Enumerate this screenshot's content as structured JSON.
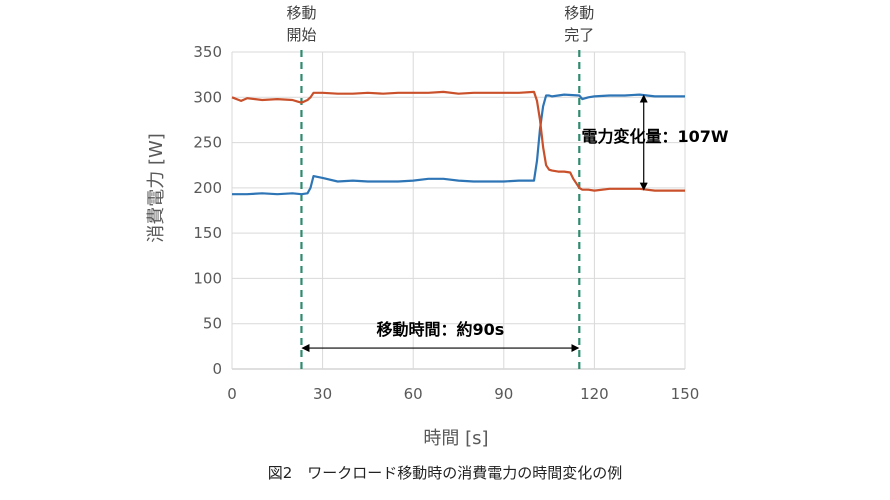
{
  "chart_data": {
    "type": "line",
    "title": "",
    "xlabel": "時間 [s]",
    "ylabel": "消費電力 [W]",
    "xlim": [
      0,
      150
    ],
    "ylim": [
      0,
      350
    ],
    "xticks": [
      0,
      30,
      60,
      90,
      120,
      150
    ],
    "yticks": [
      0,
      50,
      100,
      150,
      200,
      250,
      300,
      350
    ],
    "grid": true,
    "legend": "none",
    "series": [
      {
        "color": "#2e75b6",
        "x": [
          0,
          5,
          10,
          15,
          20,
          23,
          25,
          26,
          27,
          30,
          35,
          40,
          45,
          50,
          55,
          60,
          65,
          70,
          75,
          80,
          85,
          90,
          95,
          100,
          101,
          102,
          103,
          104,
          105,
          106,
          110,
          115,
          116,
          118,
          120,
          125,
          130,
          135,
          140,
          145,
          150
        ],
        "y": [
          193,
          193,
          194,
          193,
          194,
          193,
          194,
          200,
          213,
          211,
          207,
          208,
          207,
          207,
          207,
          208,
          210,
          210,
          208,
          207,
          207,
          207,
          208,
          208,
          230,
          265,
          290,
          302,
          302,
          301,
          303,
          302,
          298,
          300,
          301,
          302,
          302,
          303,
          301,
          301,
          301
        ]
      },
      {
        "color": "#c9502a",
        "x": [
          0,
          3,
          5,
          10,
          15,
          20,
          22,
          23,
          25,
          26,
          27,
          30,
          35,
          40,
          45,
          50,
          55,
          60,
          65,
          70,
          75,
          80,
          85,
          90,
          95,
          100,
          101,
          102,
          103,
          104,
          105,
          106,
          108,
          110,
          112,
          113,
          114,
          115,
          116,
          118,
          120,
          125,
          130,
          135,
          140,
          145,
          150
        ],
        "y": [
          300,
          296,
          299,
          297,
          298,
          297,
          295,
          294,
          297,
          300,
          305,
          305,
          304,
          304,
          305,
          304,
          305,
          305,
          305,
          306,
          304,
          305,
          305,
          305,
          305,
          306,
          296,
          275,
          245,
          225,
          220,
          219,
          218,
          218,
          217,
          210,
          205,
          200,
          198,
          198,
          197,
          199,
          199,
          199,
          197,
          197,
          197
        ]
      }
    ],
    "markers": [
      {
        "x": 23,
        "label_line1": "移動",
        "label_line2": "開始"
      },
      {
        "x": 115,
        "label_line1": "移動",
        "label_line2": "完了"
      }
    ],
    "annotations": {
      "duration_label": "移動時間：約90s",
      "duration_from_x": 23,
      "duration_to_x": 115,
      "duration_y": 43,
      "power_change_label": "電力変化量：107W",
      "power_change_x": 136,
      "power_change_from_y": 302,
      "power_change_to_y": 198
    }
  },
  "caption": "図2　ワークロード移動時の消費電力の時間変化の例"
}
